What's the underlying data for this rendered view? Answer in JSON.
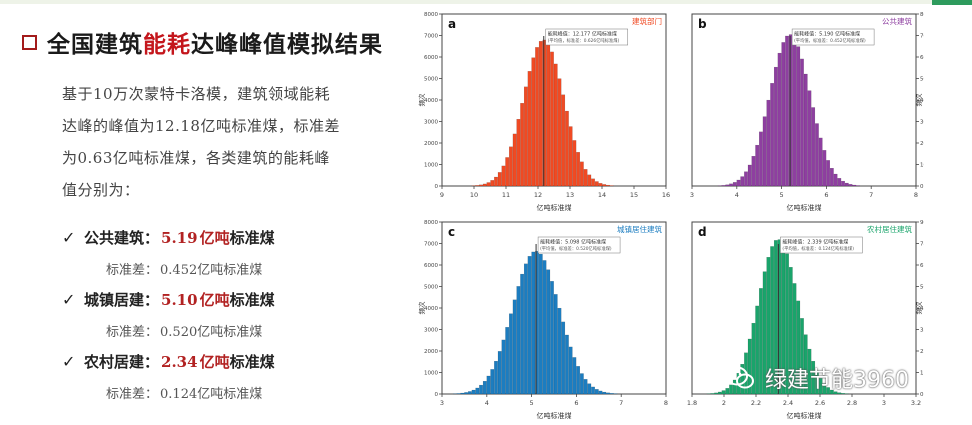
{
  "title": {
    "pre": "全国建筑",
    "hl": "能耗",
    "post": "达峰峰值模拟结果"
  },
  "intro": {
    "lines": [
      "基于10万次蒙特卡洛模，建筑领域能耗",
      "达峰的峰值为12.18亿吨标准煤，标准差",
      "为0.63亿吨标准煤，各类建筑的能耗峰",
      "值分别为："
    ]
  },
  "items": [
    {
      "check": "✓",
      "name": "公共建筑：",
      "value": "5.19",
      "unit_hl": "亿吨",
      "unit_rest": "标准煤",
      "sd_label": "标准差：",
      "sd_value": "0.452亿吨标准煤"
    },
    {
      "check": "✓",
      "name": "城镇居建：",
      "value": "5.10",
      "unit_hl": "亿吨",
      "unit_rest": "标准煤",
      "sd_label": "标准差：",
      "sd_value": "0.520亿吨标准煤"
    },
    {
      "check": "✓",
      "name": "农村居建：",
      "value": "2.34",
      "unit_hl": "亿吨",
      "unit_rest": "标准煤",
      "sd_label": "标准差：",
      "sd_value": "0.124亿吨标准煤"
    }
  ],
  "colors": {
    "a": "#f04a23",
    "b": "#8e3fa0",
    "c": "#1c7dc0",
    "d": "#1aa46b",
    "title_hl": "#c4161c",
    "value": "#b22222"
  },
  "watermark": {
    "text": "绿建节能3960",
    "icon": "wechat-icon"
  },
  "chart_data": [
    {
      "type": "bar",
      "panel_letter": "a",
      "panel_title": "建筑部门",
      "xlabel": "亿吨标准煤",
      "ylabel": "频次",
      "xlim": [
        9,
        16
      ],
      "xticks": [
        9,
        10,
        11,
        12,
        13,
        14,
        15,
        16
      ],
      "ylim": [
        0,
        8000
      ],
      "yticks": [
        0,
        1000,
        2000,
        3000,
        4000,
        5000,
        6000,
        7000,
        8000
      ],
      "mean": 12.18,
      "sd": 0.63,
      "peak": 6800,
      "bins": 60,
      "annotation": [
        "能耗峰值：12.177 亿吨标准煤",
        "(平均值，标准差：0.626亿吨标准煤)"
      ]
    },
    {
      "type": "bar",
      "panel_letter": "b",
      "panel_title": "公共建筑",
      "xlabel": "亿吨标准煤",
      "ylabel": "频次",
      "xlim": [
        3,
        8
      ],
      "xticks": [
        3,
        4,
        5,
        6,
        7,
        8
      ],
      "ylim": [
        0,
        8000
      ],
      "yticks": [
        0,
        1000,
        2000,
        3000,
        4000,
        5000,
        6000,
        7000,
        8000
      ],
      "mean": 5.19,
      "sd": 0.452,
      "peak": 7050,
      "bins": 60,
      "annotation": [
        "能耗峰值：5.190 亿吨标准煤",
        "(平均值，标准差：0.452亿吨标准煤)"
      ]
    },
    {
      "type": "bar",
      "panel_letter": "c",
      "panel_title": "城镇居住建筑",
      "xlabel": "亿吨标准煤",
      "ylabel": "频次",
      "xlim": [
        3,
        8
      ],
      "xticks": [
        3,
        4,
        5,
        6,
        7,
        8
      ],
      "ylim": [
        0,
        8000
      ],
      "yticks": [
        0,
        1000,
        2000,
        3000,
        4000,
        5000,
        6000,
        7000,
        8000
      ],
      "mean": 5.1,
      "sd": 0.52,
      "peak": 6650,
      "bins": 60,
      "annotation": [
        "能耗峰值：5.098 亿吨标准煤",
        "(平均值，标准差：0.520亿吨标准煤)"
      ]
    },
    {
      "type": "bar",
      "panel_letter": "d",
      "panel_title": "农村居住建筑",
      "xlabel": "亿吨标准煤",
      "ylabel": "频次",
      "xlim": [
        1.8,
        3.2
      ],
      "xticks": [
        1.8,
        2.0,
        2.2,
        2.4,
        2.6,
        2.8,
        3.0,
        3.2
      ],
      "ylim": [
        0,
        9000
      ],
      "yticks": [
        0,
        1125,
        2250,
        3375,
        4500,
        5625,
        6750,
        7875,
        9000
      ],
      "mean": 2.34,
      "sd": 0.124,
      "peak": 8100,
      "bins": 60,
      "annotation": [
        "能耗峰值：2.339 亿吨标准煤",
        "(平均值，标准差：0.124亿吨标准煤)"
      ]
    }
  ]
}
